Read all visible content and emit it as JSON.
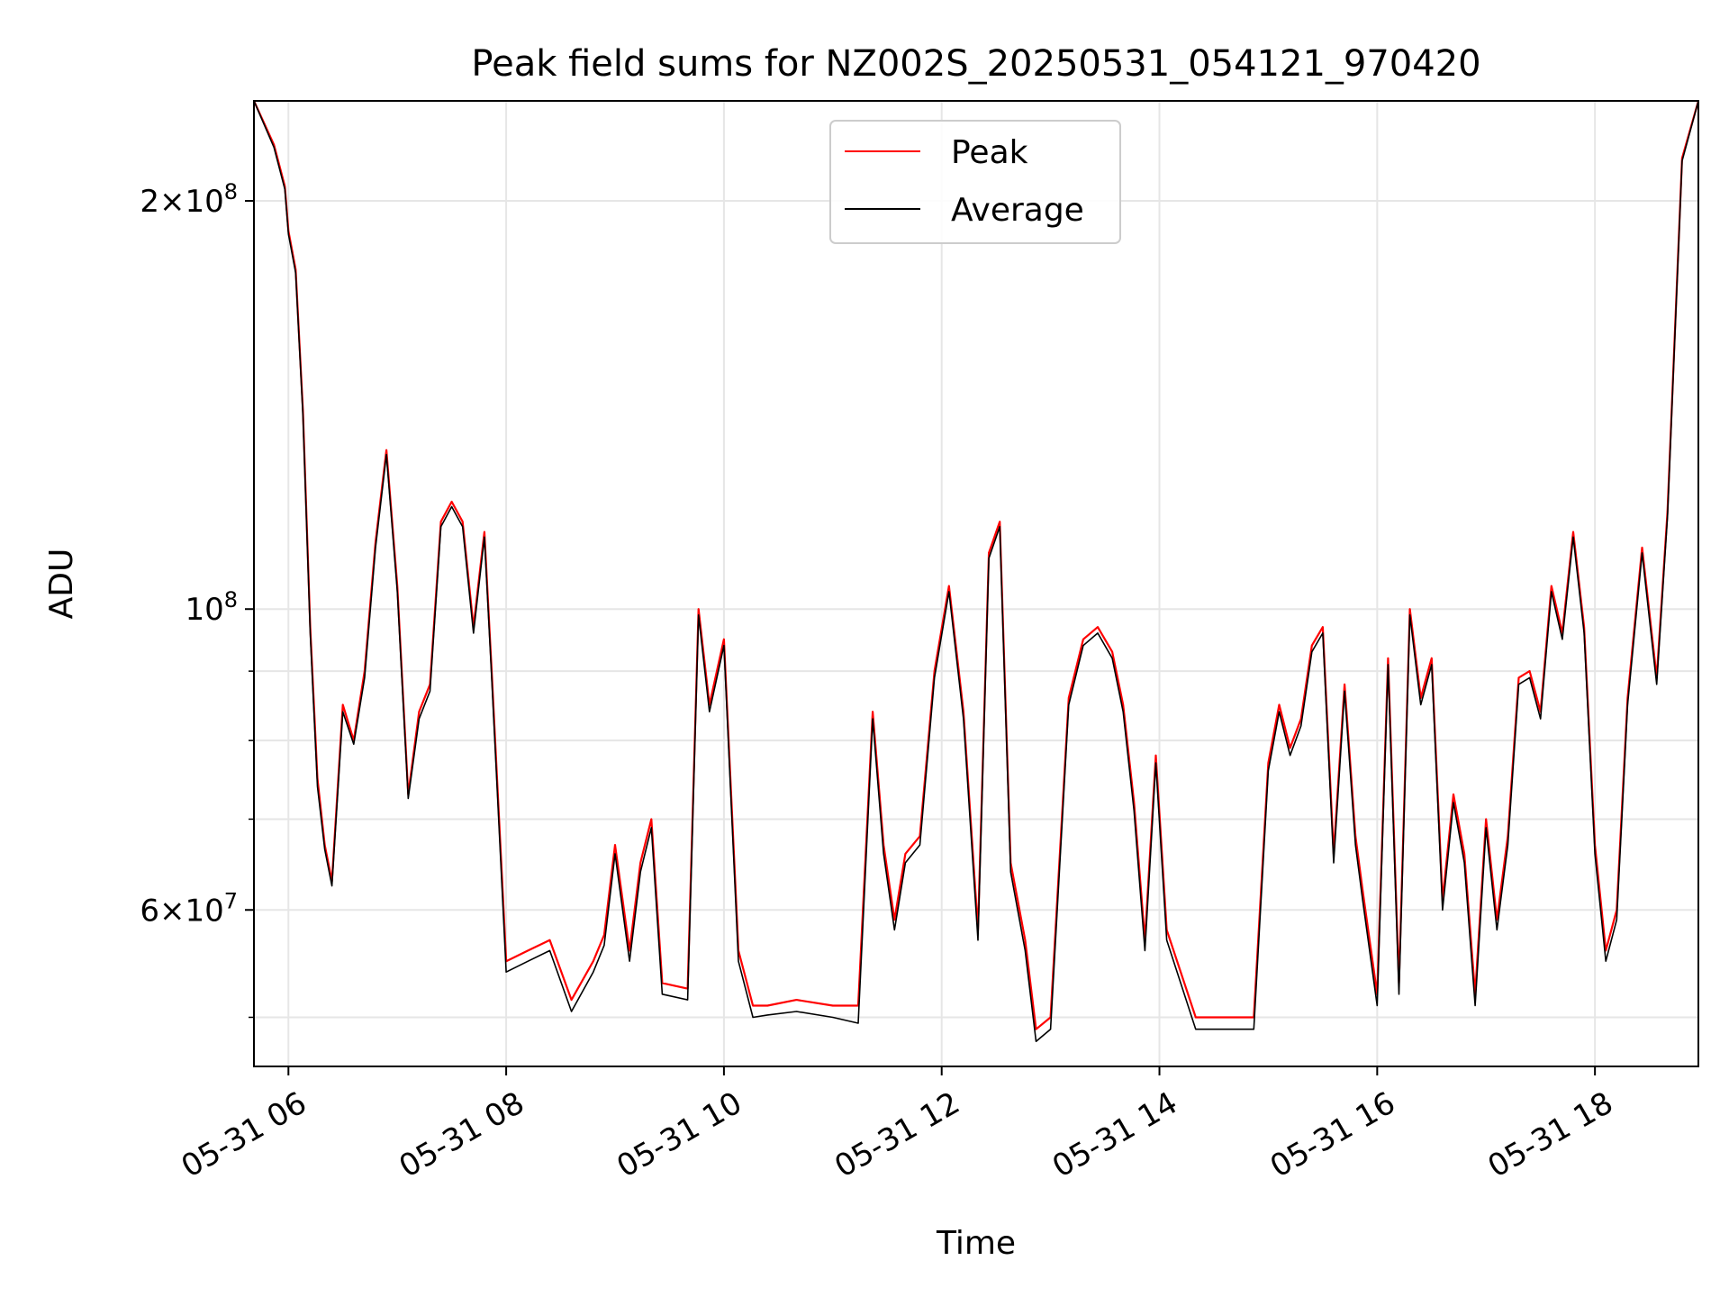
{
  "chart_data": {
    "type": "line",
    "title": "Peak field sums for NZ002S_20250531_054121_970420",
    "xlabel": "Time",
    "ylabel": "ADU",
    "y_scale": "log",
    "grid": true,
    "legend_placement": "top-center",
    "x_range": [
      "2025-05-31 05:41",
      "2025-05-31 18:57"
    ],
    "y_range": [
      46000000,
      237000000
    ],
    "x_ticks": [
      {
        "value": "2025-05-31 06:00",
        "label": "05-31 06"
      },
      {
        "value": "2025-05-31 08:00",
        "label": "05-31 08"
      },
      {
        "value": "2025-05-31 10:00",
        "label": "05-31 10"
      },
      {
        "value": "2025-05-31 12:00",
        "label": "05-31 12"
      },
      {
        "value": "2025-05-31 14:00",
        "label": "05-31 14"
      },
      {
        "value": "2025-05-31 16:00",
        "label": "05-31 16"
      },
      {
        "value": "2025-05-31 18:00",
        "label": "05-31 18"
      }
    ],
    "y_major_ticks": [
      {
        "value": 200000000,
        "mantissa": "2",
        "exponent": "8"
      },
      {
        "value": 100000000,
        "mantissa": "",
        "exponent": "8"
      },
      {
        "value": 60000000,
        "mantissa": "6",
        "exponent": "7"
      }
    ],
    "y_minor_ticks": [
      50000000,
      70000000,
      80000000,
      90000000
    ],
    "series": [
      {
        "name": "Peak",
        "color": "#ff0000",
        "x": [
          "2025-05-31 05:41",
          "2025-05-31 05:52",
          "2025-05-31 05:58",
          "2025-05-31 06:00",
          "2025-05-31 06:04",
          "2025-05-31 06:08",
          "2025-05-31 06:12",
          "2025-05-31 06:16",
          "2025-05-31 06:20",
          "2025-05-31 06:24",
          "2025-05-31 06:30",
          "2025-05-31 06:36",
          "2025-05-31 06:42",
          "2025-05-31 06:48",
          "2025-05-31 06:54",
          "2025-05-31 07:00",
          "2025-05-31 07:06",
          "2025-05-31 07:12",
          "2025-05-31 07:18",
          "2025-05-31 07:24",
          "2025-05-31 07:30",
          "2025-05-31 07:36",
          "2025-05-31 07:42",
          "2025-05-31 07:48",
          "2025-05-31 07:52",
          "2025-05-31 08:00",
          "2025-05-31 08:12",
          "2025-05-31 08:24",
          "2025-05-31 08:36",
          "2025-05-31 08:48",
          "2025-05-31 08:54",
          "2025-05-31 09:00",
          "2025-05-31 09:08",
          "2025-05-31 09:14",
          "2025-05-31 09:20",
          "2025-05-31 09:26",
          "2025-05-31 09:40",
          "2025-05-31 09:46",
          "2025-05-31 09:52",
          "2025-05-31 10:00",
          "2025-05-31 10:08",
          "2025-05-31 10:16",
          "2025-05-31 10:24",
          "2025-05-31 10:40",
          "2025-05-31 11:00",
          "2025-05-31 11:14",
          "2025-05-31 11:22",
          "2025-05-31 11:28",
          "2025-05-31 11:34",
          "2025-05-31 11:40",
          "2025-05-31 11:48",
          "2025-05-31 11:56",
          "2025-05-31 12:04",
          "2025-05-31 12:12",
          "2025-05-31 12:20",
          "2025-05-31 12:26",
          "2025-05-31 12:32",
          "2025-05-31 12:38",
          "2025-05-31 12:46",
          "2025-05-31 12:52",
          "2025-05-31 13:00",
          "2025-05-31 13:10",
          "2025-05-31 13:18",
          "2025-05-31 13:26",
          "2025-05-31 13:34",
          "2025-05-31 13:40",
          "2025-05-31 13:46",
          "2025-05-31 13:52",
          "2025-05-31 13:58",
          "2025-05-31 14:04",
          "2025-05-31 14:20",
          "2025-05-31 14:36",
          "2025-05-31 14:44",
          "2025-05-31 14:52",
          "2025-05-31 15:00",
          "2025-05-31 15:06",
          "2025-05-31 15:12",
          "2025-05-31 15:18",
          "2025-05-31 15:24",
          "2025-05-31 15:30",
          "2025-05-31 15:36",
          "2025-05-31 15:42",
          "2025-05-31 15:48",
          "2025-05-31 15:52",
          "2025-05-31 16:00",
          "2025-05-31 16:06",
          "2025-05-31 16:12",
          "2025-05-31 16:18",
          "2025-05-31 16:24",
          "2025-05-31 16:30",
          "2025-05-31 16:36",
          "2025-05-31 16:42",
          "2025-05-31 16:48",
          "2025-05-31 16:54",
          "2025-05-31 17:00",
          "2025-05-31 17:06",
          "2025-05-31 17:12",
          "2025-05-31 17:18",
          "2025-05-31 17:24",
          "2025-05-31 17:30",
          "2025-05-31 17:36",
          "2025-05-31 17:42",
          "2025-05-31 17:48",
          "2025-05-31 17:54",
          "2025-05-31 18:00",
          "2025-05-31 18:06",
          "2025-05-31 18:12",
          "2025-05-31 18:18",
          "2025-05-31 18:26",
          "2025-05-31 18:34",
          "2025-05-31 18:40",
          "2025-05-31 18:48",
          "2025-05-31 18:57"
        ],
        "values": [
          237000000,
          220000000,
          205000000,
          190000000,
          178000000,
          140000000,
          97000000,
          75000000,
          67000000,
          63000000,
          85000000,
          80000000,
          90000000,
          112000000,
          131000000,
          104000000,
          73000000,
          84000000,
          88000000,
          116000000,
          120000000,
          116000000,
          97000000,
          114000000,
          90000000,
          55000000,
          56000000,
          57000000,
          51500000,
          55000000,
          57500000,
          67000000,
          56000000,
          65000000,
          70000000,
          53000000,
          52500000,
          100000000,
          85000000,
          95000000,
          56000000,
          51000000,
          51000000,
          51500000,
          51000000,
          51000000,
          84000000,
          67000000,
          59000000,
          66000000,
          68000000,
          90000000,
          104000000,
          84000000,
          58000000,
          110000000,
          116000000,
          65000000,
          57000000,
          49000000,
          50000000,
          86000000,
          95000000,
          97000000,
          93000000,
          85000000,
          72000000,
          57000000,
          78000000,
          58000000,
          50000000,
          50000000,
          50000000,
          50000000,
          77000000,
          85000000,
          79000000,
          83000000,
          94000000,
          97000000,
          66000000,
          88000000,
          68000000,
          62000000,
          52000000,
          92000000,
          53000000,
          100000000,
          86000000,
          92000000,
          61000000,
          73000000,
          66000000,
          52000000,
          70000000,
          59000000,
          68000000,
          89000000,
          90000000,
          84000000,
          104000000,
          96000000,
          114000000,
          97000000,
          67000000,
          56000000,
          60000000,
          86000000,
          111000000,
          89000000,
          118000000,
          215000000,
          237000000
        ]
      },
      {
        "name": "Average",
        "color": "#000000",
        "x": [
          "2025-05-31 05:41",
          "2025-05-31 05:52",
          "2025-05-31 05:58",
          "2025-05-31 06:00",
          "2025-05-31 06:04",
          "2025-05-31 06:08",
          "2025-05-31 06:12",
          "2025-05-31 06:16",
          "2025-05-31 06:20",
          "2025-05-31 06:24",
          "2025-05-31 06:30",
          "2025-05-31 06:36",
          "2025-05-31 06:42",
          "2025-05-31 06:48",
          "2025-05-31 06:54",
          "2025-05-31 07:00",
          "2025-05-31 07:06",
          "2025-05-31 07:12",
          "2025-05-31 07:18",
          "2025-05-31 07:24",
          "2025-05-31 07:30",
          "2025-05-31 07:36",
          "2025-05-31 07:42",
          "2025-05-31 07:48",
          "2025-05-31 07:52",
          "2025-05-31 08:00",
          "2025-05-31 08:12",
          "2025-05-31 08:24",
          "2025-05-31 08:36",
          "2025-05-31 08:48",
          "2025-05-31 08:54",
          "2025-05-31 09:00",
          "2025-05-31 09:08",
          "2025-05-31 09:14",
          "2025-05-31 09:20",
          "2025-05-31 09:26",
          "2025-05-31 09:40",
          "2025-05-31 09:46",
          "2025-05-31 09:52",
          "2025-05-31 10:00",
          "2025-05-31 10:08",
          "2025-05-31 10:16",
          "2025-05-31 10:24",
          "2025-05-31 10:40",
          "2025-05-31 11:00",
          "2025-05-31 11:14",
          "2025-05-31 11:22",
          "2025-05-31 11:28",
          "2025-05-31 11:34",
          "2025-05-31 11:40",
          "2025-05-31 11:48",
          "2025-05-31 11:56",
          "2025-05-31 12:04",
          "2025-05-31 12:12",
          "2025-05-31 12:20",
          "2025-05-31 12:26",
          "2025-05-31 12:32",
          "2025-05-31 12:38",
          "2025-05-31 12:46",
          "2025-05-31 12:52",
          "2025-05-31 13:00",
          "2025-05-31 13:10",
          "2025-05-31 13:18",
          "2025-05-31 13:26",
          "2025-05-31 13:34",
          "2025-05-31 13:40",
          "2025-05-31 13:46",
          "2025-05-31 13:52",
          "2025-05-31 13:58",
          "2025-05-31 14:04",
          "2025-05-31 14:20",
          "2025-05-31 14:36",
          "2025-05-31 14:44",
          "2025-05-31 14:52",
          "2025-05-31 15:00",
          "2025-05-31 15:06",
          "2025-05-31 15:12",
          "2025-05-31 15:18",
          "2025-05-31 15:24",
          "2025-05-31 15:30",
          "2025-05-31 15:36",
          "2025-05-31 15:42",
          "2025-05-31 15:48",
          "2025-05-31 15:52",
          "2025-05-31 16:00",
          "2025-05-31 16:06",
          "2025-05-31 16:12",
          "2025-05-31 16:18",
          "2025-05-31 16:24",
          "2025-05-31 16:30",
          "2025-05-31 16:36",
          "2025-05-31 16:42",
          "2025-05-31 16:48",
          "2025-05-31 16:54",
          "2025-05-31 17:00",
          "2025-05-31 17:06",
          "2025-05-31 17:12",
          "2025-05-31 17:18",
          "2025-05-31 17:24",
          "2025-05-31 17:30",
          "2025-05-31 17:36",
          "2025-05-31 17:42",
          "2025-05-31 17:48",
          "2025-05-31 17:54",
          "2025-05-31 18:00",
          "2025-05-31 18:06",
          "2025-05-31 18:12",
          "2025-05-31 18:18",
          "2025-05-31 18:26",
          "2025-05-31 18:34",
          "2025-05-31 18:40",
          "2025-05-31 18:48",
          "2025-05-31 18:57"
        ],
        "values": [
          237000000,
          219000000,
          204000000,
          189000000,
          177000000,
          139000000,
          96000000,
          74000000,
          66500000,
          62500000,
          84000000,
          79500000,
          89000000,
          111000000,
          130000000,
          103000000,
          72500000,
          83000000,
          87000000,
          115000000,
          119000000,
          115000000,
          96000000,
          113000000,
          89000000,
          54000000,
          55000000,
          56000000,
          50500000,
          54000000,
          56500000,
          66000000,
          55000000,
          64000000,
          69000000,
          52000000,
          51500000,
          99000000,
          84000000,
          94000000,
          55000000,
          50000000,
          50200000,
          50500000,
          50000000,
          49500000,
          83000000,
          66000000,
          58000000,
          65000000,
          67000000,
          89000000,
          103000000,
          83000000,
          57000000,
          109000000,
          115000000,
          64000000,
          56000000,
          48000000,
          49000000,
          85000000,
          94000000,
          96000000,
          92000000,
          84000000,
          71000000,
          56000000,
          77000000,
          57000000,
          49000000,
          49000000,
          49000000,
          49000000,
          76000000,
          84000000,
          78000000,
          82000000,
          93000000,
          96000000,
          65000000,
          87000000,
          67000000,
          61000000,
          51000000,
          91000000,
          52000000,
          99000000,
          85000000,
          91000000,
          60000000,
          72000000,
          65000000,
          51000000,
          69000000,
          58000000,
          67000000,
          88000000,
          89000000,
          83000000,
          103000000,
          95000000,
          113000000,
          96000000,
          66000000,
          55000000,
          59000000,
          85000000,
          110000000,
          88000000,
          117000000,
          214000000,
          237000000
        ]
      }
    ]
  }
}
